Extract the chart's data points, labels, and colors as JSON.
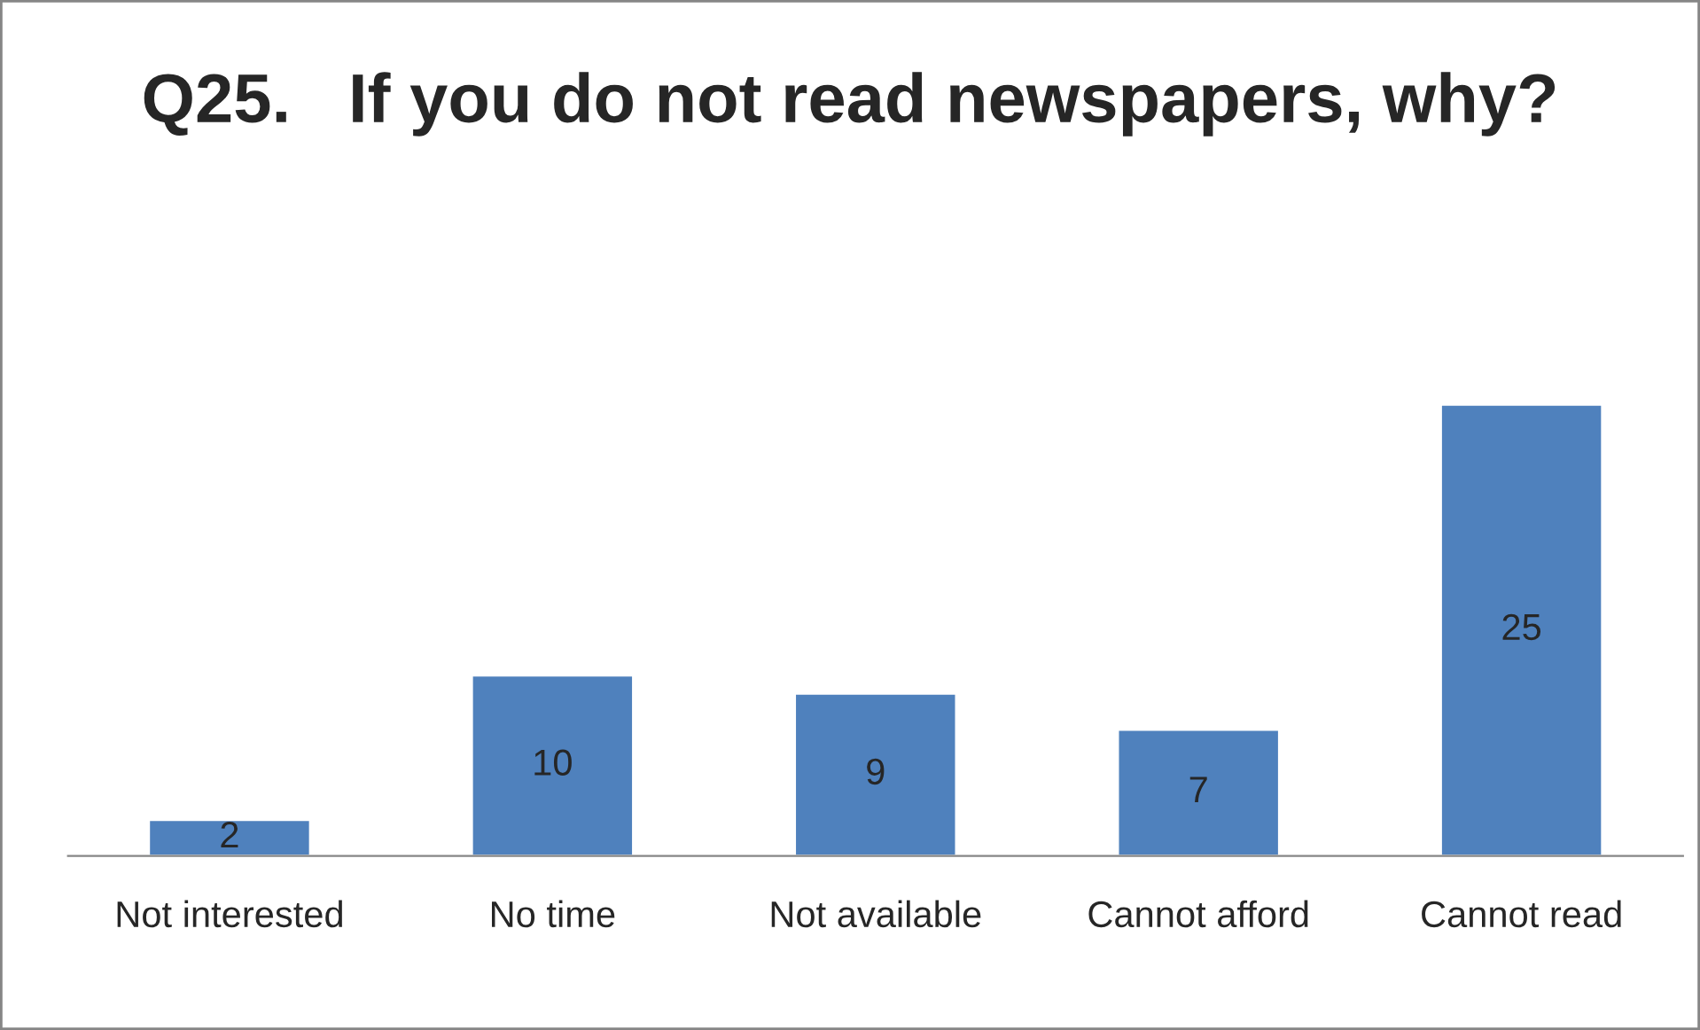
{
  "chart_data": {
    "type": "bar",
    "title": "Q25.   If you do not read newspapers, why?",
    "categories": [
      "Not interested",
      "No time",
      "Not available",
      "Cannot afford",
      "Cannot read"
    ],
    "values": [
      2,
      10,
      9,
      7,
      25
    ],
    "color": "#4f81bd",
    "data_labels": true,
    "grid": false,
    "legend": false
  }
}
